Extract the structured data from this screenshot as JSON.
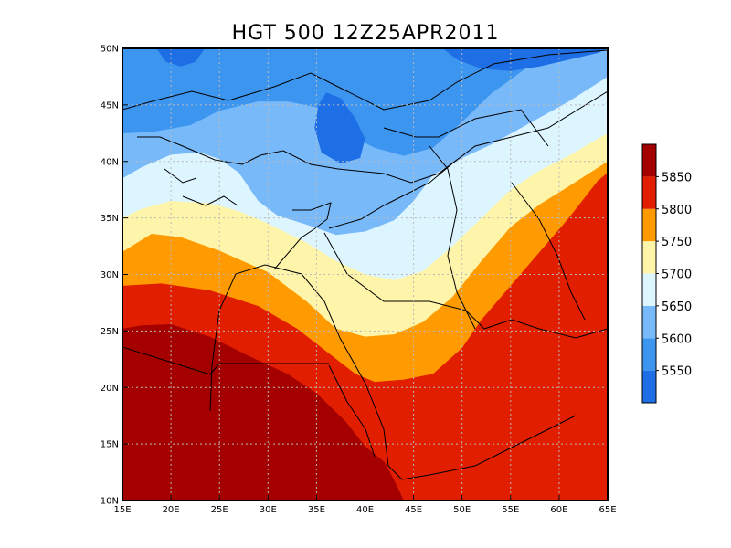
{
  "chart_data": {
    "type": "heatmap",
    "title": "HGT 500 12Z25APR2011",
    "xlabel": "",
    "ylabel": "",
    "x_ticks": [
      "15E",
      "20E",
      "25E",
      "30E",
      "35E",
      "40E",
      "45E",
      "50E",
      "55E",
      "60E",
      "65E"
    ],
    "y_ticks": [
      "10N",
      "15N",
      "20N",
      "25N",
      "30N",
      "35N",
      "40N",
      "45N",
      "50N"
    ],
    "xlim": [
      15,
      65
    ],
    "ylim": [
      10,
      50
    ],
    "grid": true,
    "levels": [
      5550,
      5600,
      5650,
      5700,
      5750,
      5800,
      5850
    ],
    "level_labels": [
      "5550",
      "5600",
      "5650",
      "5700",
      "5750",
      "5800",
      "5850"
    ],
    "colors": [
      "#1e6ee6",
      "#3c96f0",
      "#78b9fa",
      "#dcf5ff",
      "#fff5aa",
      "#ff9b00",
      "#e11e00",
      "#a50000"
    ],
    "contours": [
      {
        "level": 5850,
        "lines": [
          [
            [
              15,
              25.2
            ],
            [
              17,
              25.5
            ],
            [
              20,
              25.6
            ],
            [
              24,
              24.5
            ],
            [
              28,
              22.8
            ],
            [
              32,
              21.2
            ],
            [
              35,
              19.5
            ],
            [
              38,
              17
            ],
            [
              40,
              14.8
            ],
            [
              42,
              13.4
            ],
            [
              43,
              11.8
            ],
            [
              44,
              10
            ]
          ]
        ]
      },
      {
        "level": 5800,
        "lines": [
          [
            [
              15,
              29
            ],
            [
              19,
              29.2
            ],
            [
              24,
              28.6
            ],
            [
              29,
              27.2
            ],
            [
              33,
              25.2
            ],
            [
              36,
              23.2
            ],
            [
              39,
              21.2
            ],
            [
              41,
              20.5
            ],
            [
              44,
              20.7
            ],
            [
              47,
              21.2
            ],
            [
              50,
              23.5
            ],
            [
              52,
              26
            ],
            [
              55,
              29
            ],
            [
              58,
              32
            ],
            [
              61,
              35
            ],
            [
              64,
              38.3
            ],
            [
              65,
              39
            ]
          ]
        ]
      },
      {
        "level": 5750,
        "lines": [
          [
            [
              15,
              32
            ],
            [
              18,
              33.6
            ],
            [
              21,
              33.3
            ],
            [
              25,
              32.1
            ],
            [
              30,
              30.2
            ],
            [
              34,
              27.6
            ],
            [
              37,
              25.2
            ],
            [
              40,
              24.5
            ],
            [
              43,
              24.7
            ],
            [
              46,
              25.8
            ],
            [
              49,
              28
            ],
            [
              52,
              31.2
            ],
            [
              55,
              34.2
            ],
            [
              58,
              36.2
            ],
            [
              61,
              37.8
            ],
            [
              65,
              40
            ]
          ]
        ]
      },
      {
        "level": 5700,
        "lines": [
          [
            [
              15,
              35
            ],
            [
              17,
              35.8
            ],
            [
              20,
              36.5
            ],
            [
              24,
              36.3
            ],
            [
              27,
              35.6
            ],
            [
              30,
              34.5
            ],
            [
              34,
              32.8
            ],
            [
              37,
              31.2
            ],
            [
              40,
              30
            ],
            [
              43,
              29.5
            ],
            [
              46,
              30.3
            ],
            [
              49,
              32.5
            ],
            [
              52,
              35
            ],
            [
              55,
              37.5
            ],
            [
              58,
              39.2
            ],
            [
              61,
              40.5
            ],
            [
              65,
              42.5
            ]
          ]
        ]
      },
      {
        "level": 5650,
        "lines": [
          [
            [
              15,
              38.5
            ],
            [
              17,
              39.5
            ],
            [
              20,
              40.6
            ],
            [
              23,
              40.8
            ],
            [
              25,
              40.2
            ],
            [
              27,
              39
            ],
            [
              29,
              36.5
            ],
            [
              31,
              35.2
            ],
            [
              34,
              34.4
            ],
            [
              37,
              33.5
            ],
            [
              40,
              33.8
            ],
            [
              43,
              34.8
            ],
            [
              45,
              36.5
            ],
            [
              47,
              38.8
            ],
            [
              50,
              40.3
            ],
            [
              53,
              41.5
            ],
            [
              57,
              43.4
            ],
            [
              61,
              45.3
            ],
            [
              65,
              47.5
            ]
          ]
        ]
      },
      {
        "level": 5600,
        "lines": [
          [
            [
              15,
              42.5
            ],
            [
              18,
              42.6
            ],
            [
              22,
              43.2
            ],
            [
              25,
              44.5
            ],
            [
              29,
              45.3
            ],
            [
              32,
              45.3
            ],
            [
              35,
              44.8
            ],
            [
              38,
              42.5
            ],
            [
              41,
              41.2
            ],
            [
              44,
              40.5
            ],
            [
              47,
              41.2
            ],
            [
              50,
              43.5
            ],
            [
              53,
              46
            ],
            [
              57,
              48.5
            ],
            [
              60,
              48.8
            ],
            [
              63,
              49.5
            ],
            [
              65,
              50
            ]
          ]
        ]
      },
      {
        "level": 5550,
        "lines": [
          [
            [
              18.5,
              50
            ],
            [
              19.5,
              48.8
            ],
            [
              21,
              48.4
            ],
            [
              22.5,
              48.8
            ],
            [
              23.5,
              50
            ]
          ],
          [
            [
              35.2,
              45
            ],
            [
              36,
              46.1
            ],
            [
              37.5,
              45.6
            ],
            [
              39,
              43.8
            ],
            [
              40,
              42
            ],
            [
              39.5,
              40.3
            ],
            [
              37.5,
              39.8
            ],
            [
              35.5,
              40.8
            ],
            [
              34.8,
              43
            ],
            [
              35.2,
              45
            ]
          ],
          [
            [
              48,
              50
            ],
            [
              49.5,
              49
            ],
            [
              52,
              48.2
            ],
            [
              55,
              48
            ],
            [
              58,
              48.4
            ],
            [
              61,
              49
            ],
            [
              64,
              49.6
            ],
            [
              65,
              50
            ]
          ]
        ]
      }
    ]
  }
}
